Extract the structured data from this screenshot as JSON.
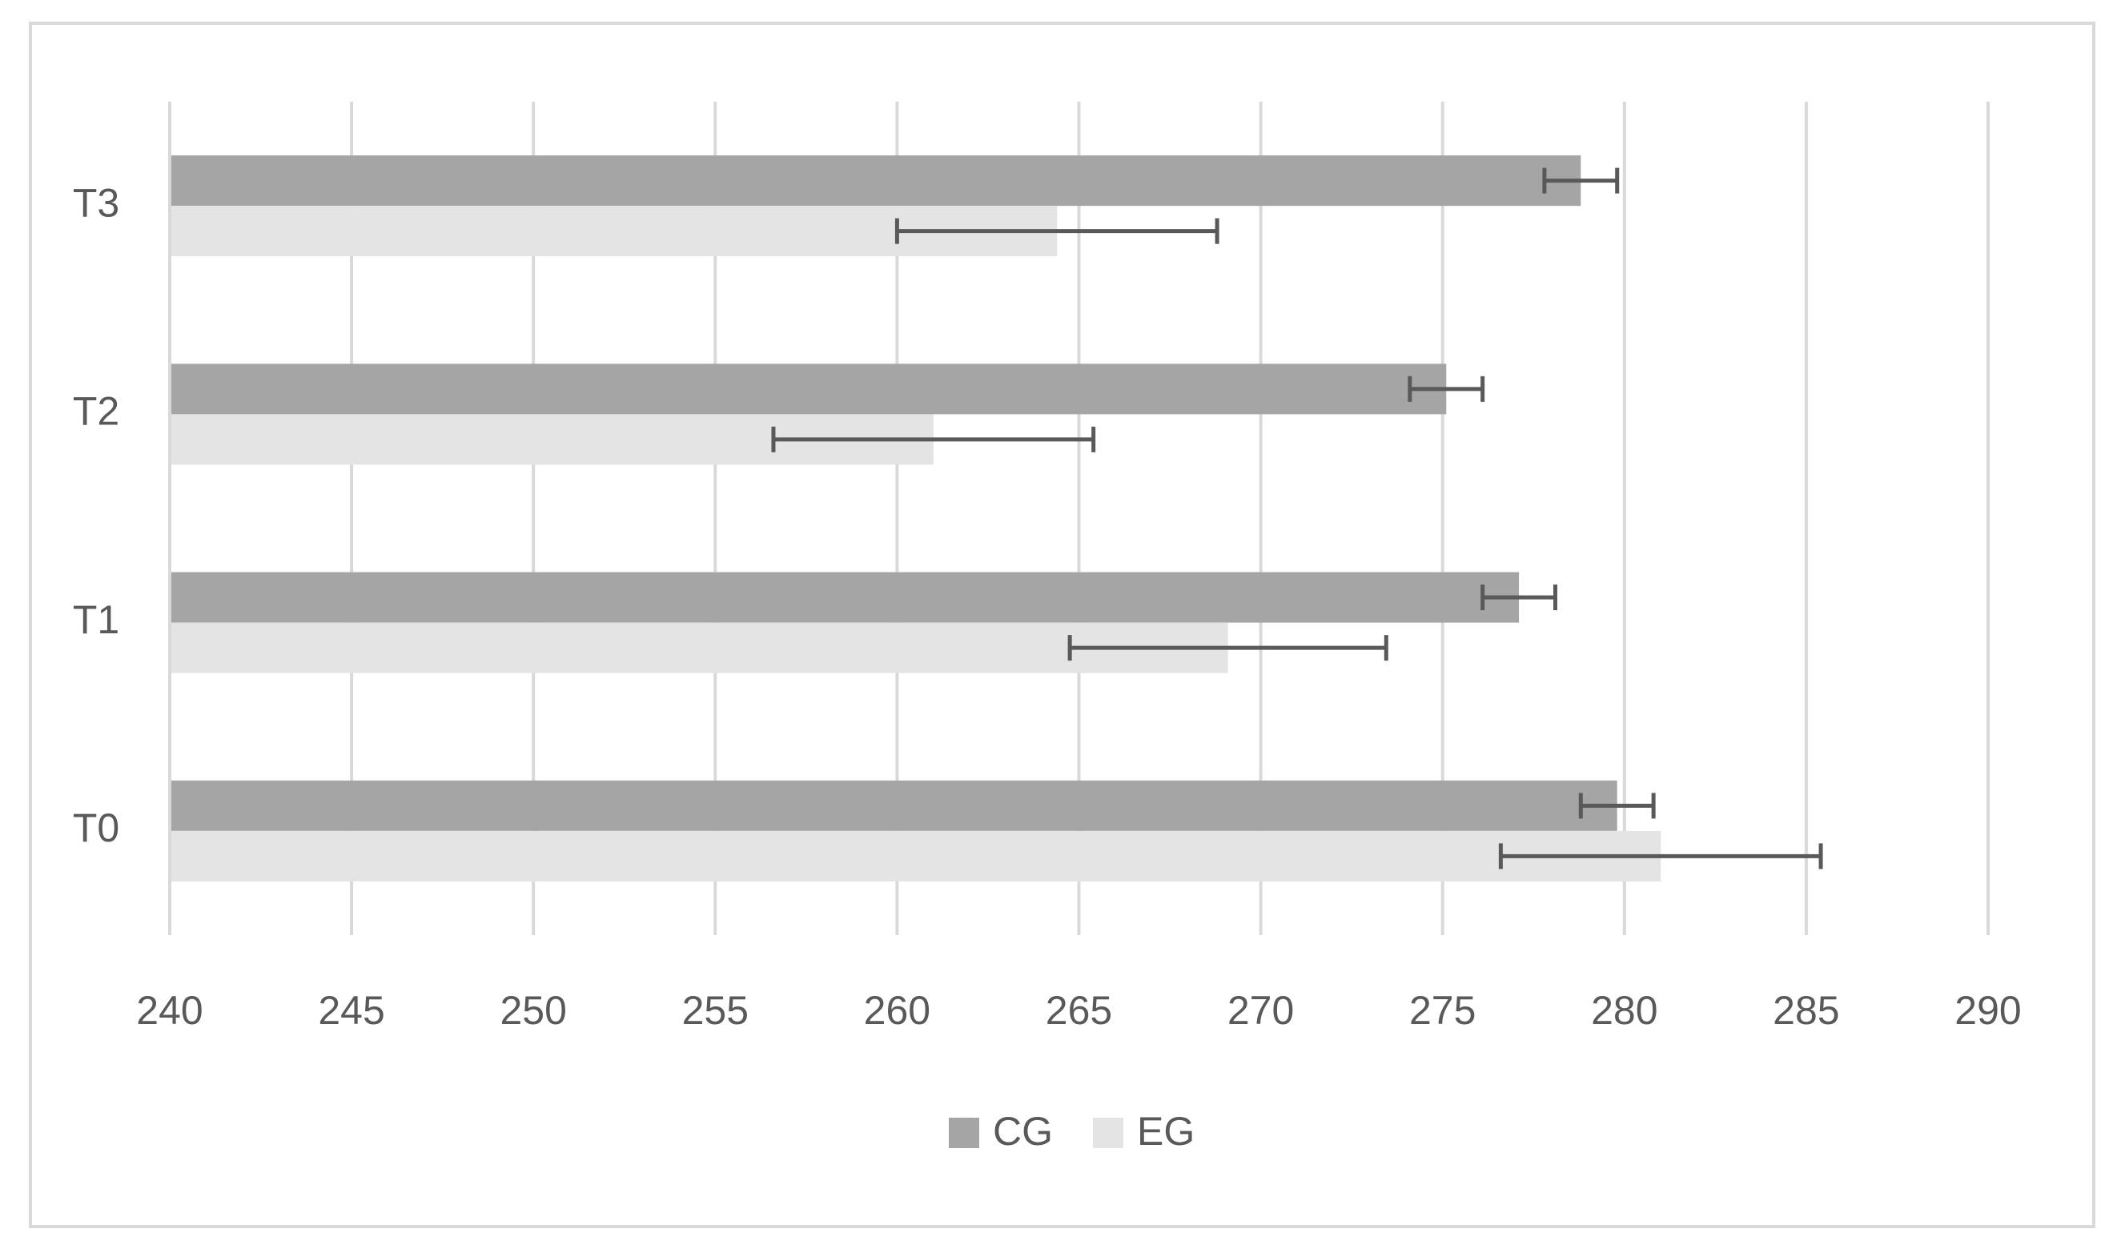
{
  "chart_data": {
    "type": "bar",
    "orientation": "horizontal",
    "categories": [
      "T0",
      "T1",
      "T2",
      "T3"
    ],
    "series": [
      {
        "name": "CG",
        "color": "#a5a5a5",
        "values": [
          279.8,
          277.1,
          275.1,
          278.8
        ],
        "errors": [
          1,
          1,
          1,
          1
        ]
      },
      {
        "name": "EG",
        "color": "#e4e4e4",
        "values": [
          281.0,
          269.1,
          261.0,
          264.4
        ],
        "errors": [
          4.4,
          4.35,
          4.4,
          4.4
        ]
      }
    ],
    "xlim": [
      240,
      290
    ],
    "xticks": [
      240,
      245,
      250,
      255,
      260,
      265,
      270,
      275,
      280,
      285,
      290
    ],
    "grid": true,
    "legend": "bottom"
  }
}
